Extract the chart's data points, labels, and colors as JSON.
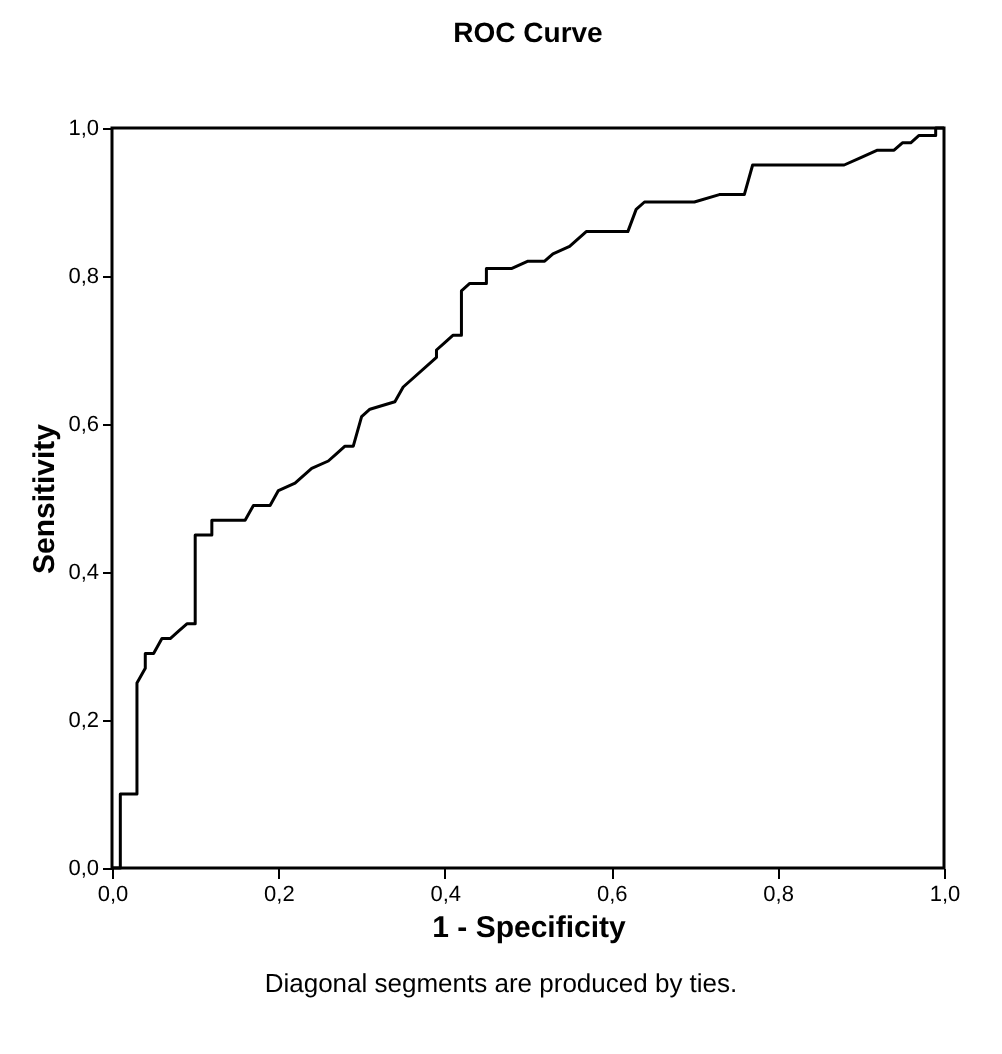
{
  "chart_data": {
    "type": "step",
    "title": "ROC Curve",
    "xlabel": "1 - Specificity",
    "ylabel": "Sensitivity",
    "annotations": [
      "Diagonal segments are produced by ties."
    ],
    "x": [
      0,
      0.01,
      0.01,
      0.03,
      0.03,
      0.04,
      0.04,
      0.05,
      0.06,
      0.07,
      0.08,
      0.09,
      0.1,
      0.1,
      0.12,
      0.12,
      0.16,
      0.17,
      0.19,
      0.2,
      0.22,
      0.24,
      0.26,
      0.27,
      0.28,
      0.29,
      0.3,
      0.31,
      0.34,
      0.35,
      0.39,
      0.39,
      0.4,
      0.41,
      0.42,
      0.42,
      0.43,
      0.45,
      0.45,
      0.48,
      0.5,
      0.52,
      0.53,
      0.55,
      0.57,
      0.62,
      0.63,
      0.64,
      0.7,
      0.73,
      0.76,
      0.77,
      0.88,
      0.9,
      0.92,
      0.94,
      0.95,
      0.96,
      0.97,
      0.99,
      0.99,
      1
    ],
    "series": [
      {
        "color": "#000000",
        "values": [
          0,
          0,
          0.1,
          0.1,
          0.25,
          0.27,
          0.29,
          0.29,
          0.31,
          0.31,
          0.32,
          0.33,
          0.33,
          0.45,
          0.45,
          0.47,
          0.47,
          0.49,
          0.49,
          0.51,
          0.52,
          0.54,
          0.55,
          0.56,
          0.57,
          0.57,
          0.61,
          0.62,
          0.63,
          0.65,
          0.69,
          0.7,
          0.71,
          0.72,
          0.72,
          0.78,
          0.79,
          0.79,
          0.81,
          0.81,
          0.82,
          0.82,
          0.83,
          0.84,
          0.86,
          0.86,
          0.89,
          0.9,
          0.9,
          0.91,
          0.91,
          0.95,
          0.95,
          0.96,
          0.97,
          0.97,
          0.98,
          0.98,
          0.99,
          0.99,
          1,
          1
        ]
      }
    ],
    "xlim": [
      0,
      1
    ],
    "ylim": [
      0,
      1
    ],
    "xticks": [
      {
        "value": 0,
        "label": "0,0"
      },
      {
        "value": 0.2,
        "label": "0,2"
      },
      {
        "value": 0.4,
        "label": "0,4"
      },
      {
        "value": 0.6,
        "label": "0,6"
      },
      {
        "value": 0.8,
        "label": "0,8"
      },
      {
        "value": 1,
        "label": "1,0"
      }
    ],
    "yticks": [
      {
        "value": 0,
        "label": "0,0"
      },
      {
        "value": 0.2,
        "label": "0,2"
      },
      {
        "value": 0.4,
        "label": "0,4"
      },
      {
        "value": 0.6,
        "label": "0,6"
      },
      {
        "value": 0.8,
        "label": "0,8"
      },
      {
        "value": 1,
        "label": "1,0"
      }
    ],
    "grid": false,
    "marker": "none",
    "line_style": "solid"
  }
}
